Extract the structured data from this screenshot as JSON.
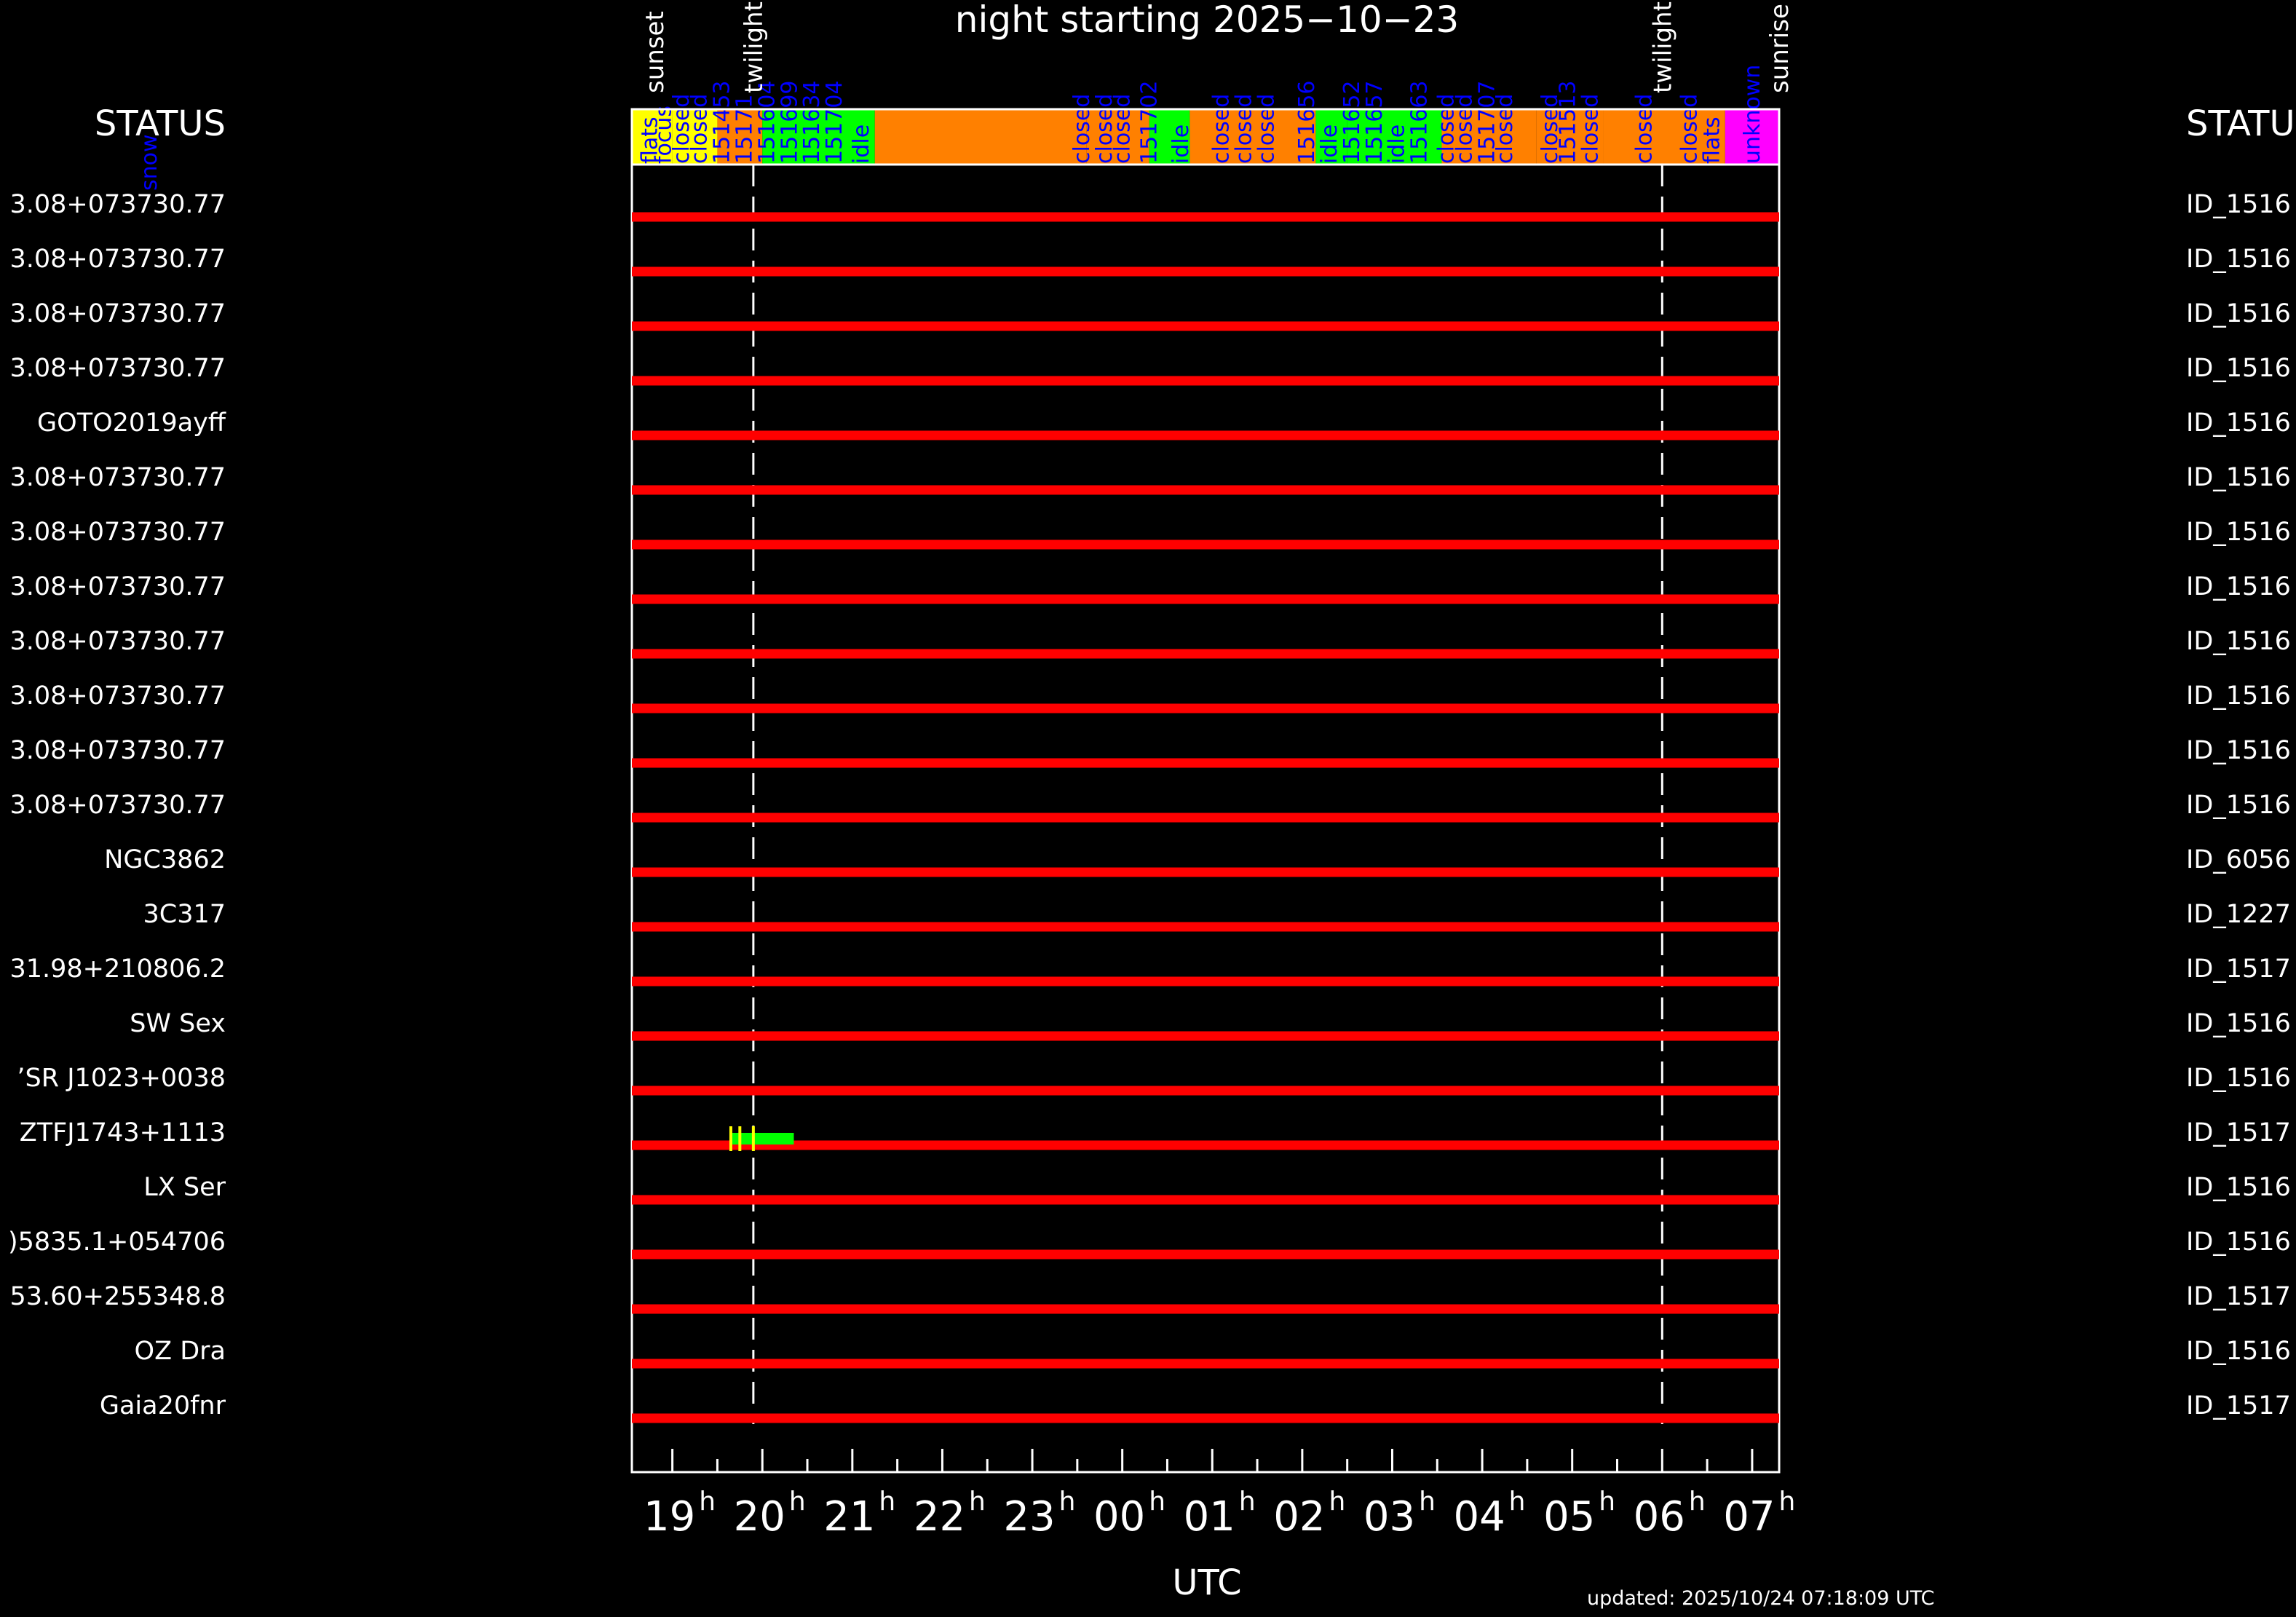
{
  "title": "night starting 2025−10−23",
  "status_left_label": "STATUS",
  "status_right_label": "STATU",
  "xlabel": "UTC",
  "updated": "updated: 2025/10/24 07:18:09 UTC",
  "colors": {
    "background": "#000000",
    "axis": "#ffffff",
    "track": "#ff0000",
    "observed": "#00ff00",
    "marker": "#ffff00",
    "status_text": "#0000ff",
    "status_flats_orange": "#ff8000",
    "status_closed_yellow": "#ffff00",
    "status_unknown_magenta": "#ff00ff"
  },
  "chart_data": {
    "type": "timeline",
    "x_unit": "hours UTC (offset from 19h)",
    "xlim": [
      -0.45,
      12.3
    ],
    "ticks": [
      {
        "hour": 0,
        "label": "19"
      },
      {
        "hour": 1,
        "label": "20"
      },
      {
        "hour": 2,
        "label": "21"
      },
      {
        "hour": 3,
        "label": "22"
      },
      {
        "hour": 4,
        "label": "23"
      },
      {
        "hour": 5,
        "label": "00"
      },
      {
        "hour": 6,
        "label": "01"
      },
      {
        "hour": 7,
        "label": "02"
      },
      {
        "hour": 8,
        "label": "03"
      },
      {
        "hour": 9,
        "label": "04"
      },
      {
        "hour": 10,
        "label": "05"
      },
      {
        "hour": 11,
        "label": "06"
      },
      {
        "hour": 12,
        "label": "07"
      }
    ],
    "tick_superscript": "h",
    "events": [
      {
        "label": "sunset",
        "hour": -0.2
      },
      {
        "label": "twilight",
        "hour": 0.9,
        "dashed": true
      },
      {
        "label": "twilight",
        "hour": 11.0,
        "dashed": true
      },
      {
        "label": "sunrise",
        "hour": 12.3
      }
    ],
    "status_bar": [
      {
        "start": -0.45,
        "end": 0.0,
        "color": "#ffff00"
      },
      {
        "start": 0.0,
        "end": 0.5,
        "color": "#ffff00"
      },
      {
        "start": 0.5,
        "end": 1.0,
        "color": "#ff8000"
      },
      {
        "start": 1.0,
        "end": 2.25,
        "color": "#00ff00"
      },
      {
        "start": 2.25,
        "end": 4.6,
        "color": "#ff8000"
      },
      {
        "start": 4.6,
        "end": 5.3,
        "color": "#ff8000"
      },
      {
        "start": 5.3,
        "end": 5.75,
        "color": "#00ff00"
      },
      {
        "start": 5.75,
        "end": 7.15,
        "color": "#ff8000"
      },
      {
        "start": 7.15,
        "end": 7.5,
        "color": "#00ff00"
      },
      {
        "start": 7.5,
        "end": 8.55,
        "color": "#00ff00"
      },
      {
        "start": 8.55,
        "end": 9.6,
        "color": "#ff8000"
      },
      {
        "start": 9.6,
        "end": 10.35,
        "color": "#ff8000"
      },
      {
        "start": 10.35,
        "end": 11.7,
        "color": "#ff8000"
      },
      {
        "start": 11.7,
        "end": 12.3,
        "color": "#ff00ff"
      }
    ],
    "status_labels": [
      {
        "text": "flats",
        "hour": -0.25
      },
      {
        "text": "focus",
        "hour": -0.1
      },
      {
        "text": "closed",
        "hour": 0.1
      },
      {
        "text": "closed",
        "hour": 0.3
      },
      {
        "text": "151453",
        "hour": 0.55
      },
      {
        "text": "15171",
        "hour": 0.8
      },
      {
        "text": "151604",
        "hour": 1.05
      },
      {
        "text": "151699",
        "hour": 1.3
      },
      {
        "text": "151634",
        "hour": 1.55
      },
      {
        "text": "151704",
        "hour": 1.8
      },
      {
        "text": "idle",
        "hour": 2.1
      },
      {
        "text": "closed",
        "hour": 4.55
      },
      {
        "text": "closed",
        "hour": 4.8
      },
      {
        "text": "closed",
        "hour": 5.0
      },
      {
        "text": "151702",
        "hour": 5.3
      },
      {
        "text": "idle",
        "hour": 5.65
      },
      {
        "text": "closed",
        "hour": 6.1
      },
      {
        "text": "closed",
        "hour": 6.35
      },
      {
        "text": "closed",
        "hour": 6.6
      },
      {
        "text": "151656",
        "hour": 7.05
      },
      {
        "text": "idle",
        "hour": 7.3
      },
      {
        "text": "151652",
        "hour": 7.55
      },
      {
        "text": "151657",
        "hour": 7.8
      },
      {
        "text": "idle",
        "hour": 8.05
      },
      {
        "text": "151663",
        "hour": 8.3
      },
      {
        "text": "closed",
        "hour": 8.6
      },
      {
        "text": "closed",
        "hour": 8.8
      },
      {
        "text": "151707",
        "hour": 9.05
      },
      {
        "text": "closed",
        "hour": 9.25
      },
      {
        "text": "closed",
        "hour": 9.75
      },
      {
        "text": "151513",
        "hour": 9.95
      },
      {
        "text": "closed",
        "hour": 10.2
      },
      {
        "text": "closed",
        "hour": 10.8
      },
      {
        "text": "closed",
        "hour": 11.3
      },
      {
        "text": "flats",
        "hour": 11.55
      },
      {
        "text": "unknown",
        "hour": 12.0
      },
      {
        "text": "snow",
        "hour": -5.5
      }
    ],
    "rows": [
      {
        "left": "3.08+073730.77",
        "right": "ID_1516"
      },
      {
        "left": "3.08+073730.77",
        "right": "ID_1516"
      },
      {
        "left": "3.08+073730.77",
        "right": "ID_1516"
      },
      {
        "left": "3.08+073730.77",
        "right": "ID_1516"
      },
      {
        "left": "GOTO2019ayff",
        "right": "ID_1516"
      },
      {
        "left": "3.08+073730.77",
        "right": "ID_1516"
      },
      {
        "left": "3.08+073730.77",
        "right": "ID_1516"
      },
      {
        "left": "3.08+073730.77",
        "right": "ID_1516"
      },
      {
        "left": "3.08+073730.77",
        "right": "ID_1516"
      },
      {
        "left": "3.08+073730.77",
        "right": "ID_1516"
      },
      {
        "left": "3.08+073730.77",
        "right": "ID_1516"
      },
      {
        "left": "3.08+073730.77",
        "right": "ID_1516"
      },
      {
        "left": "NGC3862",
        "right": "ID_6056"
      },
      {
        "left": "3C317",
        "right": "ID_1227"
      },
      {
        "left": "31.98+210806.2",
        "right": "ID_1517"
      },
      {
        "left": "SW Sex",
        "right": "ID_1516"
      },
      {
        "left": "’SR J1023+0038",
        "right": "ID_1516"
      },
      {
        "left": "ZTFJ1743+1113",
        "right": "ID_1517",
        "observed": [
          {
            "start": 0.65,
            "end": 1.35
          }
        ],
        "markers": [
          0.65,
          0.75,
          0.9
        ]
      },
      {
        "left": "LX Ser",
        "right": "ID_1516"
      },
      {
        "left": ")5835.1+054706",
        "right": "ID_1516"
      },
      {
        "left": "53.60+255348.8",
        "right": "ID_1517"
      },
      {
        "left": "OZ Dra",
        "right": "ID_1516"
      },
      {
        "left": "Gaia20fnr",
        "right": "ID_1517"
      }
    ]
  }
}
